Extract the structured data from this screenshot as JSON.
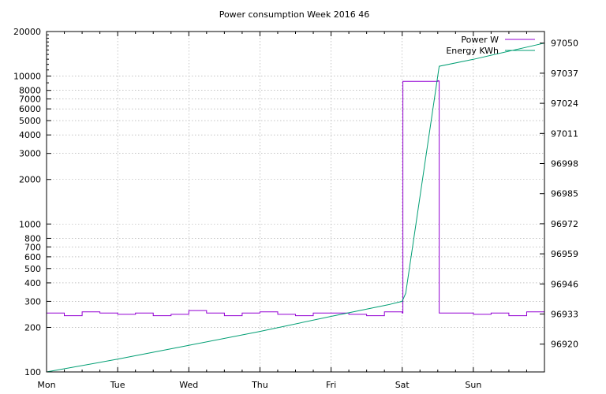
{
  "chart_data": {
    "type": "line",
    "title": "Power consumption Week 2016 46",
    "x_tick_labels": [
      "Mon",
      "Tue",
      "Wed",
      "Thu",
      "Fri",
      "Sat",
      "Sun"
    ],
    "x_range_days": [
      0,
      7
    ],
    "y_left": {
      "scale": "log",
      "range": [
        100,
        20000
      ],
      "tick_values": [
        100,
        200,
        300,
        400,
        500,
        600,
        700,
        800,
        1000,
        2000,
        3000,
        4000,
        5000,
        6000,
        7000,
        8000,
        10000,
        20000
      ],
      "tick_labels": [
        "100",
        "200",
        "300",
        "400",
        "500",
        "600",
        "700",
        "800",
        "1000",
        "2000",
        "3000",
        "4000",
        "5000",
        "6000",
        "7000",
        "8000",
        "10000",
        "20000"
      ]
    },
    "y_right": {
      "scale": "linear",
      "range": [
        96908,
        97055
      ],
      "tick_values": [
        96920,
        96933,
        96946,
        96959,
        96972,
        96985,
        96998,
        97011,
        97024,
        97037,
        97050
      ],
      "tick_labels": [
        "96920",
        "96933",
        "96946",
        "96959",
        "96972",
        "96985",
        "96998",
        "97011",
        "97024",
        "97037",
        "97050"
      ]
    },
    "grid": true,
    "legend_position": "top-right",
    "series": [
      {
        "name": "Power W",
        "axis": "left",
        "color": "#9400d3",
        "pattern": "fluctuating 180–420 W Mon through Sat morning; about 9000–12000 W from Sat 00:00 to about Sat 12:30; back to 180–420 W through Sun",
        "points": [
          [
            0.0,
            250
          ],
          [
            0.25,
            240
          ],
          [
            0.5,
            255
          ],
          [
            0.75,
            250
          ],
          [
            1.0,
            245
          ],
          [
            1.25,
            250
          ],
          [
            1.5,
            240
          ],
          [
            1.75,
            245
          ],
          [
            2.0,
            260
          ],
          [
            2.25,
            250
          ],
          [
            2.5,
            240
          ],
          [
            2.75,
            250
          ],
          [
            3.0,
            255
          ],
          [
            3.25,
            245
          ],
          [
            3.5,
            240
          ],
          [
            3.75,
            250
          ],
          [
            4.0,
            250
          ],
          [
            4.25,
            245
          ],
          [
            4.5,
            240
          ],
          [
            4.75,
            255
          ],
          [
            5.0,
            250
          ],
          [
            5.01,
            9200
          ],
          [
            5.5,
            9300
          ],
          [
            5.51,
            9250
          ],
          [
            5.52,
            250
          ],
          [
            5.75,
            250
          ],
          [
            6.0,
            245
          ],
          [
            6.25,
            250
          ],
          [
            6.5,
            240
          ],
          [
            6.75,
            255
          ],
          [
            7.0,
            250
          ]
        ]
      },
      {
        "name": "Energy KWh",
        "axis": "right",
        "color": "#009e73",
        "points": [
          [
            0.0,
            96908.0
          ],
          [
            1.0,
            96913.5
          ],
          [
            2.0,
            96919.5
          ],
          [
            3.0,
            96925.5
          ],
          [
            4.0,
            96932.0
          ],
          [
            4.8,
            96937.0
          ],
          [
            5.0,
            96938.5
          ],
          [
            5.05,
            96942.0
          ],
          [
            5.52,
            97040.0
          ],
          [
            6.0,
            97043.0
          ],
          [
            7.0,
            97050.0
          ]
        ]
      }
    ]
  }
}
